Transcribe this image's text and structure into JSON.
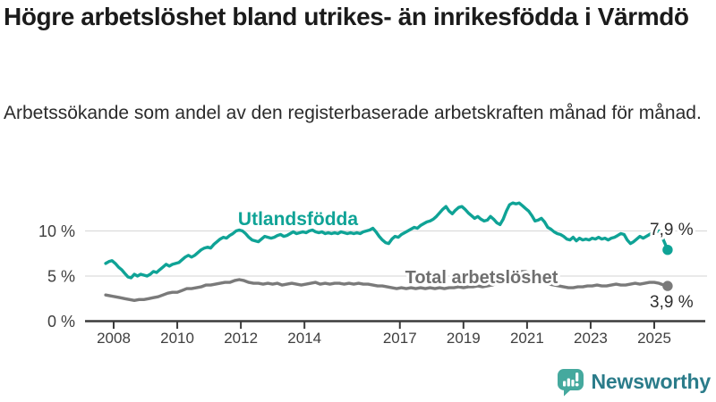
{
  "header": {
    "title": "Högre arbetslöshet bland utrikes- än inrikesfödda i Värmdö",
    "subtitle": "Arbetssökande som andel av den registerbaserade arbetskraften månad för månad."
  },
  "branding": {
    "logo_text": "Newsworthy",
    "logo_icon": "bar-chart-speech-bubble-icon",
    "logo_icon_color": "#45a99e",
    "logo_text_color": "#2b7c8a"
  },
  "chart_data": {
    "type": "line",
    "unit": "%",
    "grid": "horizontal",
    "legend_position": "inline-labels",
    "x_tick_labels": [
      "2008",
      "2010",
      "2012",
      "2014",
      "2017",
      "2019",
      "2021",
      "2023",
      "2025"
    ],
    "y_ticks": [
      {
        "label": "0 %",
        "value": 0
      },
      {
        "label": "5 %",
        "value": 5
      },
      {
        "label": "10 %",
        "value": 10
      }
    ],
    "xlim": [
      2007.6,
      2026.3
    ],
    "ylim": [
      0,
      15.8
    ],
    "series": [
      {
        "name": "Utlandsfödda",
        "color": "#0fa396",
        "end_label": "7,9 %",
        "end_value": 7.9,
        "points": [
          [
            2007.75,
            6.4
          ],
          [
            2007.85,
            6.6
          ],
          [
            2007.95,
            6.7
          ],
          [
            2008.05,
            6.4
          ],
          [
            2008.15,
            6.0
          ],
          [
            2008.25,
            5.7
          ],
          [
            2008.35,
            5.3
          ],
          [
            2008.45,
            4.9
          ],
          [
            2008.55,
            4.8
          ],
          [
            2008.65,
            5.2
          ],
          [
            2008.75,
            5.0
          ],
          [
            2008.85,
            5.2
          ],
          [
            2008.95,
            5.1
          ],
          [
            2009.05,
            5.0
          ],
          [
            2009.15,
            5.2
          ],
          [
            2009.25,
            5.5
          ],
          [
            2009.35,
            5.4
          ],
          [
            2009.45,
            5.7
          ],
          [
            2009.55,
            6.0
          ],
          [
            2009.65,
            6.3
          ],
          [
            2009.75,
            6.1
          ],
          [
            2009.85,
            6.3
          ],
          [
            2009.95,
            6.4
          ],
          [
            2010.05,
            6.5
          ],
          [
            2010.15,
            6.8
          ],
          [
            2010.25,
            7.1
          ],
          [
            2010.35,
            7.3
          ],
          [
            2010.45,
            7.1
          ],
          [
            2010.55,
            7.3
          ],
          [
            2010.65,
            7.6
          ],
          [
            2010.75,
            7.9
          ],
          [
            2010.85,
            8.1
          ],
          [
            2010.95,
            8.2
          ],
          [
            2011.05,
            8.1
          ],
          [
            2011.15,
            8.5
          ],
          [
            2011.25,
            8.8
          ],
          [
            2011.35,
            9.1
          ],
          [
            2011.45,
            9.3
          ],
          [
            2011.55,
            9.2
          ],
          [
            2011.65,
            9.5
          ],
          [
            2011.75,
            9.7
          ],
          [
            2011.85,
            10.0
          ],
          [
            2011.95,
            10.1
          ],
          [
            2012.05,
            10.0
          ],
          [
            2012.15,
            9.7
          ],
          [
            2012.25,
            9.3
          ],
          [
            2012.35,
            9.0
          ],
          [
            2012.45,
            8.9
          ],
          [
            2012.55,
            8.8
          ],
          [
            2012.65,
            9.1
          ],
          [
            2012.75,
            9.4
          ],
          [
            2012.85,
            9.3
          ],
          [
            2012.95,
            9.2
          ],
          [
            2013.05,
            9.3
          ],
          [
            2013.15,
            9.5
          ],
          [
            2013.25,
            9.6
          ],
          [
            2013.35,
            9.4
          ],
          [
            2013.45,
            9.5
          ],
          [
            2013.55,
            9.7
          ],
          [
            2013.65,
            9.9
          ],
          [
            2013.75,
            9.7
          ],
          [
            2013.85,
            9.8
          ],
          [
            2013.95,
            9.9
          ],
          [
            2014.05,
            9.8
          ],
          [
            2014.15,
            10.0
          ],
          [
            2014.25,
            10.1
          ],
          [
            2014.35,
            9.9
          ],
          [
            2014.45,
            9.8
          ],
          [
            2014.55,
            9.9
          ],
          [
            2014.65,
            9.7
          ],
          [
            2014.75,
            9.8
          ],
          [
            2014.85,
            9.7
          ],
          [
            2014.95,
            9.8
          ],
          [
            2015.05,
            9.7
          ],
          [
            2015.15,
            9.9
          ],
          [
            2015.25,
            9.8
          ],
          [
            2015.35,
            9.7
          ],
          [
            2015.45,
            9.8
          ],
          [
            2015.55,
            9.7
          ],
          [
            2015.65,
            9.8
          ],
          [
            2015.75,
            9.7
          ],
          [
            2015.85,
            9.9
          ],
          [
            2015.95,
            10.0
          ],
          [
            2016.05,
            10.1
          ],
          [
            2016.15,
            10.3
          ],
          [
            2016.25,
            9.9
          ],
          [
            2016.35,
            9.4
          ],
          [
            2016.45,
            9.0
          ],
          [
            2016.55,
            8.7
          ],
          [
            2016.65,
            8.6
          ],
          [
            2016.75,
            9.1
          ],
          [
            2016.85,
            9.4
          ],
          [
            2016.95,
            9.3
          ],
          [
            2017.05,
            9.6
          ],
          [
            2017.15,
            9.8
          ],
          [
            2017.25,
            10.0
          ],
          [
            2017.35,
            10.2
          ],
          [
            2017.45,
            10.4
          ],
          [
            2017.55,
            10.3
          ],
          [
            2017.65,
            10.6
          ],
          [
            2017.75,
            10.8
          ],
          [
            2017.85,
            11.0
          ],
          [
            2017.95,
            11.1
          ],
          [
            2018.05,
            11.3
          ],
          [
            2018.15,
            11.6
          ],
          [
            2018.25,
            12.0
          ],
          [
            2018.35,
            12.4
          ],
          [
            2018.45,
            12.7
          ],
          [
            2018.55,
            12.2
          ],
          [
            2018.65,
            11.9
          ],
          [
            2018.75,
            12.3
          ],
          [
            2018.85,
            12.6
          ],
          [
            2018.95,
            12.7
          ],
          [
            2019.05,
            12.4
          ],
          [
            2019.15,
            12.0
          ],
          [
            2019.25,
            11.7
          ],
          [
            2019.35,
            11.4
          ],
          [
            2019.45,
            11.6
          ],
          [
            2019.55,
            11.3
          ],
          [
            2019.65,
            11.1
          ],
          [
            2019.75,
            11.2
          ],
          [
            2019.85,
            11.6
          ],
          [
            2019.95,
            11.3
          ],
          [
            2020.05,
            10.9
          ],
          [
            2020.15,
            10.7
          ],
          [
            2020.25,
            11.3
          ],
          [
            2020.35,
            12.2
          ],
          [
            2020.45,
            12.9
          ],
          [
            2020.55,
            13.1
          ],
          [
            2020.65,
            13.0
          ],
          [
            2020.75,
            13.1
          ],
          [
            2020.85,
            12.8
          ],
          [
            2020.95,
            12.5
          ],
          [
            2021.05,
            12.2
          ],
          [
            2021.15,
            11.7
          ],
          [
            2021.25,
            11.1
          ],
          [
            2021.35,
            11.2
          ],
          [
            2021.45,
            11.4
          ],
          [
            2021.55,
            11.0
          ],
          [
            2021.65,
            10.4
          ],
          [
            2021.75,
            10.2
          ],
          [
            2021.85,
            9.9
          ],
          [
            2021.95,
            9.7
          ],
          [
            2022.05,
            9.6
          ],
          [
            2022.15,
            9.4
          ],
          [
            2022.25,
            9.1
          ],
          [
            2022.35,
            9.0
          ],
          [
            2022.45,
            9.3
          ],
          [
            2022.55,
            8.9
          ],
          [
            2022.65,
            9.2
          ],
          [
            2022.75,
            9.0
          ],
          [
            2022.85,
            9.1
          ],
          [
            2022.95,
            9.0
          ],
          [
            2023.05,
            9.2
          ],
          [
            2023.15,
            9.1
          ],
          [
            2023.25,
            9.3
          ],
          [
            2023.35,
            9.1
          ],
          [
            2023.45,
            9.2
          ],
          [
            2023.55,
            9.0
          ],
          [
            2023.65,
            9.2
          ],
          [
            2023.75,
            9.3
          ],
          [
            2023.85,
            9.5
          ],
          [
            2023.95,
            9.7
          ],
          [
            2024.05,
            9.6
          ],
          [
            2024.15,
            9.0
          ],
          [
            2024.25,
            8.6
          ],
          [
            2024.35,
            8.8
          ],
          [
            2024.45,
            9.1
          ],
          [
            2024.55,
            9.4
          ],
          [
            2024.65,
            9.2
          ],
          [
            2024.75,
            9.4
          ],
          [
            2024.85,
            9.6
          ],
          [
            2024.95,
            9.8
          ],
          [
            2025.05,
            9.9
          ],
          [
            2025.15,
            10.0
          ],
          [
            2025.25,
            9.3
          ],
          [
            2025.35,
            8.5
          ],
          [
            2025.42,
            7.9
          ]
        ]
      },
      {
        "name": "Total arbetslöshet",
        "color": "#7a7a7a",
        "end_label": "3,9 %",
        "end_value": 3.9,
        "points": [
          [
            2007.75,
            2.9
          ],
          [
            2007.9,
            2.8
          ],
          [
            2008.05,
            2.7
          ],
          [
            2008.2,
            2.6
          ],
          [
            2008.35,
            2.5
          ],
          [
            2008.5,
            2.4
          ],
          [
            2008.65,
            2.3
          ],
          [
            2008.8,
            2.4
          ],
          [
            2008.95,
            2.4
          ],
          [
            2009.1,
            2.5
          ],
          [
            2009.25,
            2.6
          ],
          [
            2009.4,
            2.7
          ],
          [
            2009.55,
            2.9
          ],
          [
            2009.7,
            3.1
          ],
          [
            2009.85,
            3.2
          ],
          [
            2010.0,
            3.2
          ],
          [
            2010.15,
            3.4
          ],
          [
            2010.3,
            3.6
          ],
          [
            2010.45,
            3.6
          ],
          [
            2010.6,
            3.7
          ],
          [
            2010.75,
            3.8
          ],
          [
            2010.9,
            4.0
          ],
          [
            2011.05,
            4.0
          ],
          [
            2011.2,
            4.1
          ],
          [
            2011.35,
            4.2
          ],
          [
            2011.5,
            4.3
          ],
          [
            2011.65,
            4.3
          ],
          [
            2011.8,
            4.5
          ],
          [
            2011.95,
            4.6
          ],
          [
            2012.1,
            4.5
          ],
          [
            2012.25,
            4.3
          ],
          [
            2012.4,
            4.2
          ],
          [
            2012.55,
            4.2
          ],
          [
            2012.7,
            4.1
          ],
          [
            2012.85,
            4.2
          ],
          [
            2013.0,
            4.1
          ],
          [
            2013.15,
            4.2
          ],
          [
            2013.3,
            4.0
          ],
          [
            2013.45,
            4.1
          ],
          [
            2013.6,
            4.2
          ],
          [
            2013.75,
            4.1
          ],
          [
            2013.9,
            4.0
          ],
          [
            2014.05,
            4.1
          ],
          [
            2014.2,
            4.2
          ],
          [
            2014.35,
            4.3
          ],
          [
            2014.5,
            4.1
          ],
          [
            2014.65,
            4.2
          ],
          [
            2014.8,
            4.1
          ],
          [
            2014.95,
            4.2
          ],
          [
            2015.1,
            4.2
          ],
          [
            2015.25,
            4.1
          ],
          [
            2015.4,
            4.2
          ],
          [
            2015.55,
            4.1
          ],
          [
            2015.7,
            4.2
          ],
          [
            2015.85,
            4.1
          ],
          [
            2016.0,
            4.1
          ],
          [
            2016.15,
            4.0
          ],
          [
            2016.3,
            3.9
          ],
          [
            2016.45,
            3.9
          ],
          [
            2016.6,
            3.8
          ],
          [
            2016.75,
            3.7
          ],
          [
            2016.9,
            3.6
          ],
          [
            2017.05,
            3.7
          ],
          [
            2017.2,
            3.6
          ],
          [
            2017.35,
            3.7
          ],
          [
            2017.5,
            3.6
          ],
          [
            2017.65,
            3.7
          ],
          [
            2017.8,
            3.6
          ],
          [
            2017.95,
            3.7
          ],
          [
            2018.1,
            3.6
          ],
          [
            2018.25,
            3.7
          ],
          [
            2018.4,
            3.6
          ],
          [
            2018.55,
            3.7
          ],
          [
            2018.7,
            3.7
          ],
          [
            2018.85,
            3.8
          ],
          [
            2019.0,
            3.7
          ],
          [
            2019.15,
            3.8
          ],
          [
            2019.3,
            3.8
          ],
          [
            2019.45,
            3.9
          ],
          [
            2019.6,
            3.8
          ],
          [
            2019.75,
            3.9
          ],
          [
            2019.9,
            4.0
          ],
          [
            2020.05,
            4.2
          ],
          [
            2020.2,
            4.8
          ],
          [
            2020.35,
            5.3
          ],
          [
            2020.5,
            5.5
          ],
          [
            2020.65,
            5.6
          ],
          [
            2020.8,
            5.5
          ],
          [
            2020.95,
            5.5
          ],
          [
            2021.1,
            5.3
          ],
          [
            2021.25,
            4.9
          ],
          [
            2021.4,
            4.6
          ],
          [
            2021.55,
            4.3
          ],
          [
            2021.7,
            4.1
          ],
          [
            2021.85,
            4.0
          ],
          [
            2022.0,
            3.9
          ],
          [
            2022.15,
            3.8
          ],
          [
            2022.3,
            3.7
          ],
          [
            2022.45,
            3.7
          ],
          [
            2022.6,
            3.8
          ],
          [
            2022.75,
            3.8
          ],
          [
            2022.9,
            3.9
          ],
          [
            2023.05,
            3.9
          ],
          [
            2023.2,
            4.0
          ],
          [
            2023.35,
            3.9
          ],
          [
            2023.5,
            3.9
          ],
          [
            2023.65,
            4.0
          ],
          [
            2023.8,
            4.1
          ],
          [
            2023.95,
            4.0
          ],
          [
            2024.1,
            4.0
          ],
          [
            2024.25,
            4.1
          ],
          [
            2024.4,
            4.2
          ],
          [
            2024.55,
            4.1
          ],
          [
            2024.7,
            4.2
          ],
          [
            2024.85,
            4.3
          ],
          [
            2025.0,
            4.3
          ],
          [
            2025.15,
            4.2
          ],
          [
            2025.3,
            4.0
          ],
          [
            2025.42,
            3.9
          ]
        ]
      }
    ]
  }
}
